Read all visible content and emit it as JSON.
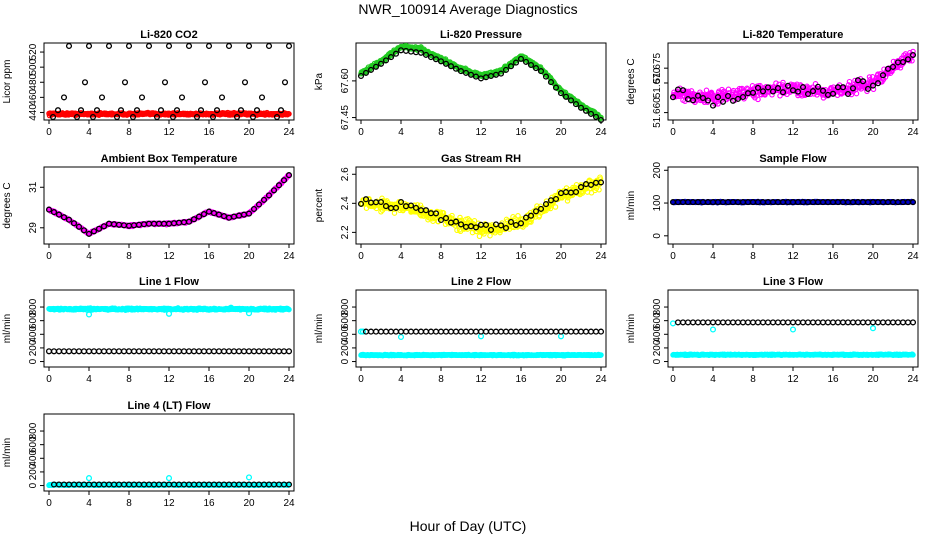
{
  "figure": {
    "title": "NWR_100914  Average Diagnostics",
    "xlabel": "Hour of Day (UTC)"
  },
  "colors": {
    "black": "#000000",
    "red": "#ff0000",
    "green": "#22cc22",
    "magenta": "#ff00ff",
    "yellow": "#ffff00",
    "blue": "#0000cc",
    "cyan": "#00ffff"
  },
  "chart_data": [
    {
      "id": "li820-co2",
      "type": "scatter",
      "title": "Li-820 CO2",
      "ylabel": "Licor ppm",
      "xlim": [
        -0.5,
        24.5
      ],
      "ylim": [
        430,
        532
      ],
      "xticks": [
        0,
        4,
        8,
        12,
        16,
        20,
        24
      ],
      "yticks": [
        440,
        460,
        480,
        500,
        520
      ],
      "series": [
        {
          "name": "raw",
          "color": "red",
          "style": "dense",
          "x": [
            0,
            24
          ],
          "y": [
            438,
            438
          ],
          "noise": 1.2
        },
        {
          "name": "averages",
          "color": "black",
          "style": "circle",
          "points": [
            [
              0.4,
              434
            ],
            [
              0.9,
              443
            ],
            [
              1.5,
              460
            ],
            [
              2,
              528
            ],
            [
              2.8,
              434
            ],
            [
              3.2,
              443
            ],
            [
              3.6,
              480
            ],
            [
              4,
              528
            ],
            [
              4.4,
              434
            ],
            [
              4.8,
              443
            ],
            [
              5.3,
              460
            ],
            [
              6,
              528
            ],
            [
              6.8,
              434
            ],
            [
              7.2,
              443
            ],
            [
              7.6,
              480
            ],
            [
              8,
              528
            ],
            [
              8.4,
              434
            ],
            [
              8.8,
              443
            ],
            [
              9.3,
              460
            ],
            [
              10,
              528
            ],
            [
              10.8,
              434
            ],
            [
              11.2,
              443
            ],
            [
              11.6,
              480
            ],
            [
              12,
              528
            ],
            [
              12.4,
              434
            ],
            [
              12.8,
              443
            ],
            [
              13.3,
              460
            ],
            [
              14,
              528
            ],
            [
              14.8,
              434
            ],
            [
              15.2,
              443
            ],
            [
              15.6,
              480
            ],
            [
              16,
              528
            ],
            [
              16.4,
              434
            ],
            [
              16.8,
              443
            ],
            [
              17.3,
              460
            ],
            [
              18,
              528
            ],
            [
              18.8,
              434
            ],
            [
              19.2,
              443
            ],
            [
              19.6,
              480
            ],
            [
              20,
              528
            ],
            [
              20.4,
              434
            ],
            [
              20.8,
              443
            ],
            [
              21.3,
              460
            ],
            [
              22,
              528
            ],
            [
              22.8,
              434
            ],
            [
              23.2,
              443
            ],
            [
              23.6,
              480
            ],
            [
              24,
              528
            ]
          ]
        }
      ]
    },
    {
      "id": "li820-pressure",
      "type": "scatter",
      "title": "Li-820 Pressure",
      "ylabel": "kPa",
      "xlim": [
        -0.5,
        24.5
      ],
      "ylim": [
        67.44,
        67.755
      ],
      "xticks": [
        0,
        4,
        8,
        12,
        16,
        20,
        24
      ],
      "ytick_labels": [
        "67.45",
        "67.60"
      ],
      "yticks": [
        67.45,
        67.6
      ],
      "series": [
        {
          "name": "raw",
          "color": "green",
          "style": "dense",
          "x": [
            0,
            2,
            4,
            6,
            8,
            10,
            12,
            14,
            16,
            18,
            20,
            22,
            24
          ],
          "y": [
            67.63,
            67.68,
            67.74,
            67.73,
            67.69,
            67.65,
            67.62,
            67.64,
            67.7,
            67.65,
            67.56,
            67.5,
            67.45
          ],
          "noise": 0.006
        },
        {
          "name": "averages",
          "color": "black",
          "style": "circle",
          "x": [
            0,
            2,
            4,
            6,
            8,
            10,
            12,
            14,
            16,
            18,
            20,
            22,
            24
          ],
          "y": [
            67.62,
            67.67,
            67.725,
            67.715,
            67.68,
            67.64,
            67.61,
            67.63,
            67.69,
            67.64,
            67.55,
            67.49,
            67.44
          ],
          "every": 0.5
        }
      ]
    },
    {
      "id": "li820-temperature",
      "type": "scatter",
      "title": "Li-820 Temperature",
      "ylabel": "degrees C",
      "xlim": [
        -0.5,
        24.5
      ],
      "ylim": [
        51.6575,
        51.6835
      ],
      "xticks": [
        0,
        4,
        8,
        12,
        16,
        20,
        24
      ],
      "ytick_labels": [
        "51.660",
        "51.670",
        "51.675"
      ],
      "yticks": [
        51.66,
        51.67,
        51.675
      ],
      "series": [
        {
          "name": "raw",
          "color": "magenta",
          "style": "dense",
          "x": [
            0,
            4,
            8,
            12,
            16,
            20,
            24
          ],
          "y": [
            51.666,
            51.665,
            51.667,
            51.668,
            51.667,
            51.67,
            51.68
          ],
          "noise": 0.0017
        },
        {
          "name": "averages",
          "color": "black",
          "style": "circle",
          "x": [
            0,
            4,
            8,
            12,
            16,
            20,
            24
          ],
          "y": [
            51.666,
            51.664,
            51.667,
            51.668,
            51.667,
            51.67,
            51.68
          ],
          "every": 0.5,
          "noise": 0.0015
        }
      ]
    },
    {
      "id": "ambient-box-temperature",
      "type": "scatter",
      "title": "Ambient Box Temperature",
      "ylabel": "degrees C",
      "xlim": [
        -0.5,
        24.5
      ],
      "ylim": [
        28.2,
        32.0
      ],
      "xticks": [
        0,
        4,
        8,
        12,
        16,
        20,
        24
      ],
      "yticks": [
        29,
        31
      ],
      "series": [
        {
          "name": "raw",
          "color": "magenta",
          "style": "dense",
          "x": [
            0,
            2,
            4,
            6,
            8,
            10,
            12,
            14,
            16,
            18,
            20,
            22,
            24
          ],
          "y": [
            29.9,
            29.4,
            28.7,
            29.2,
            29.1,
            29.2,
            29.2,
            29.3,
            29.8,
            29.5,
            29.7,
            30.6,
            31.6
          ],
          "noise": 0.03
        },
        {
          "name": "averages",
          "color": "black",
          "style": "circle",
          "x": [
            0,
            2,
            4,
            6,
            8,
            10,
            12,
            14,
            16,
            18,
            20,
            22,
            24
          ],
          "y": [
            29.9,
            29.4,
            28.7,
            29.2,
            29.1,
            29.2,
            29.2,
            29.3,
            29.8,
            29.5,
            29.7,
            30.6,
            31.6
          ],
          "every": 0.5
        }
      ]
    },
    {
      "id": "gas-stream-rh",
      "type": "scatter",
      "title": "Gas Stream RH",
      "ylabel": "percent",
      "xlim": [
        -0.5,
        24.5
      ],
      "ylim": [
        2.12,
        2.65
      ],
      "xticks": [
        0,
        4,
        8,
        12,
        16,
        20,
        24
      ],
      "yticks": [
        2.2,
        2.4,
        2.6
      ],
      "series": [
        {
          "name": "raw",
          "color": "yellow",
          "style": "dense",
          "x": [
            0,
            4,
            8,
            12,
            16,
            20,
            24
          ],
          "y": [
            2.4,
            2.38,
            2.3,
            2.22,
            2.26,
            2.45,
            2.54
          ],
          "noise": 0.035
        },
        {
          "name": "averages",
          "color": "black",
          "style": "circle",
          "x": [
            0,
            4,
            8,
            12,
            16,
            20,
            24
          ],
          "y": [
            2.41,
            2.39,
            2.3,
            2.23,
            2.26,
            2.46,
            2.55
          ],
          "every": 0.5,
          "noise": 0.02
        }
      ]
    },
    {
      "id": "sample-flow",
      "type": "scatter",
      "title": "Sample Flow",
      "ylabel": "ml/min",
      "xlim": [
        -0.5,
        24.5
      ],
      "ylim": [
        -25,
        210
      ],
      "xticks": [
        0,
        4,
        8,
        12,
        16,
        20,
        24
      ],
      "yticks": [
        0,
        100,
        200
      ],
      "series": [
        {
          "name": "raw",
          "color": "blue",
          "style": "dense",
          "x": [
            0,
            24
          ],
          "y": [
            103,
            103
          ],
          "noise": 1.2
        },
        {
          "name": "averages",
          "color": "black",
          "style": "circle",
          "x": [
            0,
            24
          ],
          "y": [
            103,
            103
          ],
          "every": 0.5
        }
      ]
    },
    {
      "id": "line1-flow",
      "type": "scatter",
      "title": "Line 1 Flow",
      "ylabel": "ml/min",
      "xlim": [
        -0.5,
        24.5
      ],
      "ylim": [
        -80,
        1050
      ],
      "xticks": [
        0,
        4,
        8,
        12,
        16,
        20,
        24
      ],
      "yticks": [
        0,
        200,
        400,
        600,
        800
      ],
      "series": [
        {
          "name": "raw",
          "color": "cyan",
          "style": "dense",
          "x": [
            0,
            24
          ],
          "y": [
            770,
            770
          ],
          "noise": 10
        },
        {
          "name": "dips",
          "color": "cyan",
          "style": "circle",
          "points": [
            [
              4,
              690
            ],
            [
              12,
              700
            ],
            [
              18.2,
              790
            ],
            [
              20,
              710
            ]
          ]
        },
        {
          "name": "averages",
          "color": "black",
          "style": "circle",
          "x": [
            0,
            24
          ],
          "y": [
            150,
            150
          ],
          "every": 0.5
        }
      ]
    },
    {
      "id": "line2-flow",
      "type": "scatter",
      "title": "Line 2 Flow",
      "ylabel": "ml/min",
      "xlim": [
        -0.5,
        24.5
      ],
      "ylim": [
        -80,
        1050
      ],
      "xticks": [
        0,
        4,
        8,
        12,
        16,
        20,
        24
      ],
      "yticks": [
        0,
        200,
        400,
        600,
        800
      ],
      "series": [
        {
          "name": "raw",
          "color": "cyan",
          "style": "dense",
          "x": [
            0,
            24
          ],
          "y": [
            95,
            95
          ],
          "noise": 6
        },
        {
          "name": "raw-high",
          "color": "cyan",
          "style": "circle",
          "points": [
            [
              0,
              440
            ],
            [
              0.2,
              440
            ],
            [
              4,
              360
            ],
            [
              12,
              370
            ],
            [
              20,
              370
            ]
          ]
        },
        {
          "name": "averages",
          "color": "black",
          "style": "circle",
          "x": [
            0.5,
            24
          ],
          "y": [
            440,
            440
          ],
          "every": 0.5
        }
      ]
    },
    {
      "id": "line3-flow",
      "type": "scatter",
      "title": "Line 3 Flow",
      "ylabel": "ml/min",
      "xlim": [
        -0.5,
        24.5
      ],
      "ylim": [
        -80,
        1050
      ],
      "xticks": [
        0,
        4,
        8,
        12,
        16,
        20,
        24
      ],
      "yticks": [
        0,
        200,
        400,
        600,
        800
      ],
      "series": [
        {
          "name": "raw",
          "color": "cyan",
          "style": "dense",
          "x": [
            0,
            24
          ],
          "y": [
            100,
            100
          ],
          "noise": 6
        },
        {
          "name": "raw-high",
          "color": "cyan",
          "style": "circle",
          "points": [
            [
              0,
              560
            ],
            [
              4,
              470
            ],
            [
              12,
              470
            ],
            [
              20,
              490
            ]
          ]
        },
        {
          "name": "averages",
          "color": "black",
          "style": "circle",
          "x": [
            0.5,
            24
          ],
          "y": [
            575,
            575
          ],
          "every": 0.5
        }
      ]
    },
    {
      "id": "line4-flow",
      "type": "scatter",
      "title": "Line 4 (LT) Flow",
      "ylabel": "ml/min",
      "xlim": [
        -0.5,
        24.5
      ],
      "ylim": [
        -80,
        1050
      ],
      "xticks": [
        0,
        4,
        8,
        12,
        16,
        20,
        24
      ],
      "yticks": [
        0,
        200,
        400,
        600,
        800
      ],
      "series": [
        {
          "name": "raw",
          "color": "cyan",
          "style": "dense",
          "x": [
            0,
            24
          ],
          "y": [
            10,
            10
          ],
          "noise": 5
        },
        {
          "name": "spikes",
          "color": "cyan",
          "style": "circle",
          "points": [
            [
              4,
              110
            ],
            [
              12,
              110
            ],
            [
              20,
              120
            ]
          ]
        },
        {
          "name": "averages",
          "color": "black",
          "style": "circle",
          "x": [
            0.5,
            24
          ],
          "y": [
            15,
            15
          ],
          "every": 0.5
        }
      ]
    }
  ]
}
